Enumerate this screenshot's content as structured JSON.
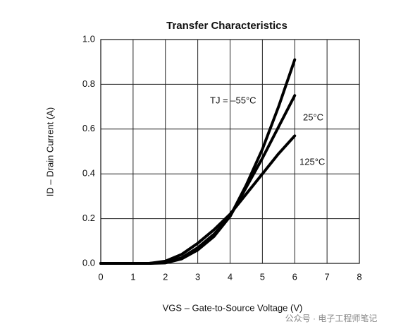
{
  "chart_data": {
    "type": "line",
    "title": "Transfer Characteristics",
    "x_label": "VGS – Gate-to-Source Voltage (V)",
    "y_label": "ID – Drain Current (A)",
    "watermark": "公众号 · 电子工程师笔记",
    "x": [
      0,
      0.5,
      1,
      1.5,
      2,
      2.5,
      3,
      3.5,
      4,
      4.5,
      5,
      5.5,
      6
    ],
    "series": [
      {
        "name": "TJ = –55°C",
        "color": "#000000",
        "values": [
          0,
          0,
          0,
          0,
          0.002,
          0.02,
          0.06,
          0.12,
          0.21,
          0.35,
          0.51,
          0.7,
          0.91
        ]
      },
      {
        "name": "25°C",
        "color": "#000000",
        "values": [
          0,
          0,
          0,
          0,
          0.005,
          0.025,
          0.07,
          0.13,
          0.21,
          0.34,
          0.47,
          0.61,
          0.75
        ]
      },
      {
        "name": "125°C",
        "color": "#000000",
        "values": [
          0,
          0,
          0,
          0,
          0.01,
          0.04,
          0.09,
          0.15,
          0.22,
          0.31,
          0.4,
          0.49,
          0.57
        ]
      }
    ],
    "xlim": [
      0,
      8
    ],
    "xticks": [
      0,
      1,
      2,
      3,
      4,
      5,
      6,
      7,
      8
    ],
    "ylim": [
      0,
      1
    ],
    "yticks": [
      {
        "value": 0,
        "label": "0.0"
      },
      0.2,
      0.4,
      0.6,
      0.8,
      {
        "value": 1,
        "label": "1.0"
      }
    ],
    "grid": true
  }
}
